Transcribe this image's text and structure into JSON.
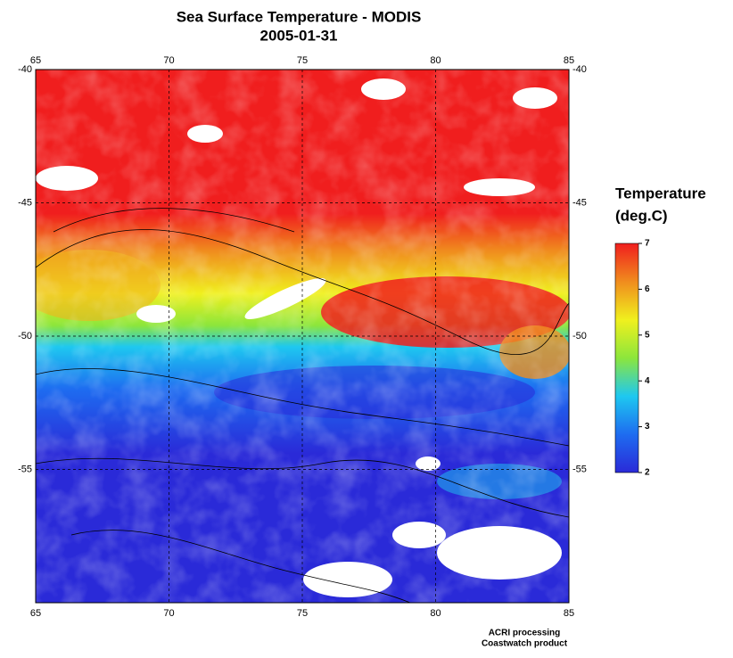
{
  "title": "Sea Surface Temperature - MODIS",
  "subtitle": "2005-01-31",
  "map": {
    "xlim": [
      65,
      85
    ],
    "ylim": [
      -40,
      -60
    ],
    "xticks": [
      65,
      70,
      75,
      80,
      85
    ],
    "yticks": [
      -40,
      -45,
      -50,
      -55
    ],
    "grid": true
  },
  "colorbar": {
    "title": [
      "Temperature",
      "(deg.C)"
    ],
    "lim": [
      2,
      7
    ],
    "ticks": [
      2,
      3,
      4,
      5,
      6,
      7
    ],
    "colors": [
      "#2a2ad8",
      "#1e6cf0",
      "#1ec8f0",
      "#8ce63c",
      "#f0f01e",
      "#f08c1e",
      "#f01e1e"
    ]
  },
  "footer": [
    "ACRI processing",
    "Coastwatch product"
  ]
}
